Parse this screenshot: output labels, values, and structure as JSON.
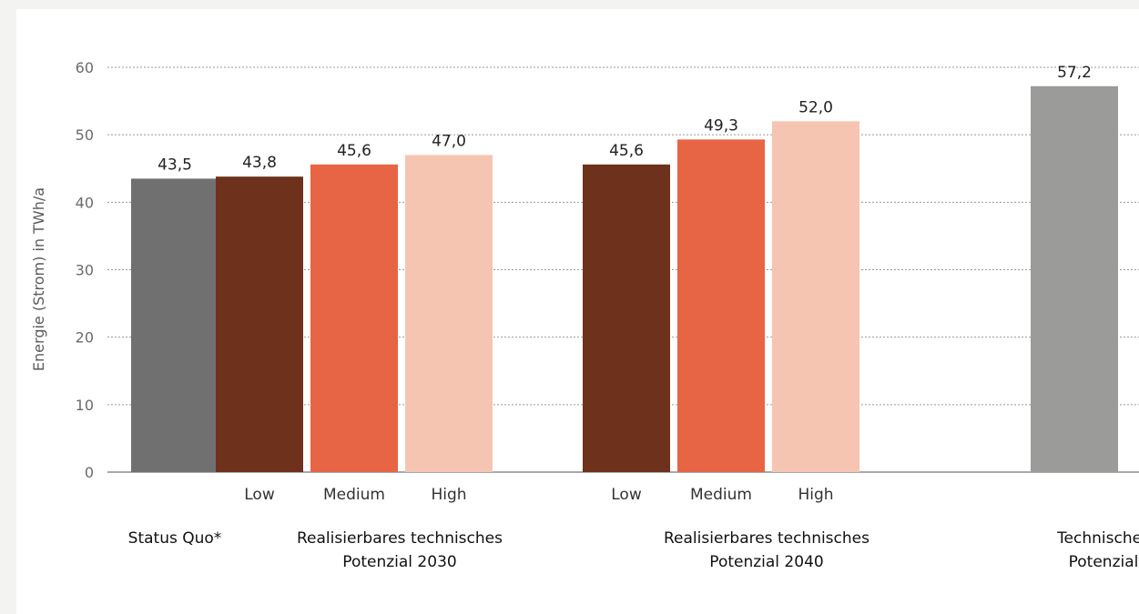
{
  "chart_data": {
    "type": "bar",
    "ylabel": "Energie (Strom) in TWh/a",
    "ylim": [
      0,
      60
    ],
    "yticks": [
      "0",
      "10",
      "20",
      "30",
      "40",
      "50",
      "60"
    ],
    "grid": true,
    "bars": [
      {
        "group": 0,
        "sub_label": "",
        "value": 43.5,
        "value_label": "43,5",
        "color": "#707070"
      },
      {
        "group": 1,
        "sub_label": "Low",
        "value": 43.8,
        "value_label": "43,8",
        "color": "#6e311c"
      },
      {
        "group": 1,
        "sub_label": "Medium",
        "value": 45.6,
        "value_label": "45,6",
        "color": "#e76444"
      },
      {
        "group": 1,
        "sub_label": "High",
        "value": 47.0,
        "value_label": "47,0",
        "color": "#f6c5b1"
      },
      {
        "group": 2,
        "sub_label": "Low",
        "value": 45.6,
        "value_label": "45,6",
        "color": "#6e311c"
      },
      {
        "group": 2,
        "sub_label": "Medium",
        "value": 49.3,
        "value_label": "49,3",
        "color": "#e76444"
      },
      {
        "group": 2,
        "sub_label": "High",
        "value": 52.0,
        "value_label": "52,0",
        "color": "#f6c5b1"
      },
      {
        "group": 3,
        "sub_label": "",
        "value": 57.2,
        "value_label": "57,2",
        "color": "#9b9b99"
      }
    ],
    "groups": [
      {
        "lines": [
          "Status Quo*"
        ]
      },
      {
        "lines": [
          "Realisierbares technisches",
          "Potenzial 2030"
        ]
      },
      {
        "lines": [
          "Realisierbares technisches",
          "Potenzial 2040"
        ]
      },
      {
        "lines": [
          "Technisches",
          "Potenzial"
        ]
      }
    ]
  }
}
